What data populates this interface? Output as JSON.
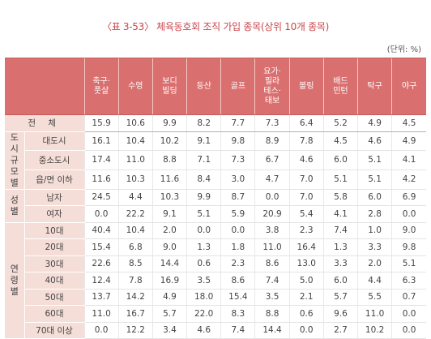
{
  "title": "〈표 3-53〉 체육동호회 조직 가입 종목(상위 10개 종목)",
  "unit": "(단위: %)",
  "columns": [
    "축구·\n풋살",
    "수영",
    "보디\n빌딩",
    "등산",
    "골프",
    "요가·\n필라\n테스·\n태보",
    "볼링",
    "배드\n민턴",
    "탁구",
    "야구"
  ],
  "total": {
    "label": "전 체",
    "values": [
      "15.9",
      "10.6",
      "9.9",
      "8.2",
      "7.7",
      "7.3",
      "6.4",
      "5.2",
      "4.9",
      "4.5"
    ]
  },
  "groups": [
    {
      "label": "도\n시\n규\n모\n별",
      "rows": [
        {
          "label": "대도시",
          "values": [
            "16.1",
            "10.4",
            "10.2",
            "9.1",
            "9.8",
            "8.9",
            "7.8",
            "4.5",
            "4.6",
            "4.9"
          ]
        },
        {
          "label": "중소도시",
          "values": [
            "17.4",
            "11.0",
            "8.8",
            "7.1",
            "7.3",
            "6.7",
            "4.6",
            "6.0",
            "5.1",
            "4.1"
          ]
        },
        {
          "label": "읍/면 이하",
          "values": [
            "11.6",
            "10.3",
            "11.6",
            "8.4",
            "3.0",
            "4.7",
            "7.0",
            "5.1",
            "5.1",
            "4.2"
          ]
        }
      ]
    },
    {
      "label": "성\n별",
      "rows": [
        {
          "label": "남자",
          "values": [
            "24.5",
            "4.4",
            "10.3",
            "9.9",
            "8.7",
            "0.0",
            "7.0",
            "5.8",
            "6.0",
            "6.9"
          ]
        },
        {
          "label": "여자",
          "values": [
            "0.0",
            "22.2",
            "9.1",
            "5.1",
            "5.9",
            "20.9",
            "5.4",
            "4.1",
            "2.8",
            "0.0"
          ]
        }
      ]
    },
    {
      "label": "연\n령\n별",
      "rows": [
        {
          "label": "10대",
          "values": [
            "40.4",
            "10.4",
            "2.0",
            "0.0",
            "0.0",
            "3.8",
            "2.3",
            "7.4",
            "1.0",
            "9.0"
          ]
        },
        {
          "label": "20대",
          "values": [
            "15.4",
            "6.8",
            "9.0",
            "1.3",
            "1.8",
            "11.0",
            "16.4",
            "1.3",
            "3.3",
            "9.8"
          ]
        },
        {
          "label": "30대",
          "values": [
            "22.6",
            "8.5",
            "14.4",
            "0.6",
            "2.3",
            "8.6",
            "13.0",
            "3.3",
            "2.0",
            "5.1"
          ]
        },
        {
          "label": "40대",
          "values": [
            "12.4",
            "7.8",
            "16.9",
            "3.5",
            "8.6",
            "7.4",
            "5.0",
            "6.0",
            "4.4",
            "6.3"
          ]
        },
        {
          "label": "50대",
          "values": [
            "13.7",
            "14.2",
            "4.9",
            "18.0",
            "15.4",
            "3.5",
            "2.1",
            "5.7",
            "5.5",
            "0.7"
          ]
        },
        {
          "label": "60대",
          "values": [
            "11.0",
            "16.7",
            "5.7",
            "22.0",
            "8.3",
            "8.8",
            "0.6",
            "9.6",
            "11.0",
            "0.0"
          ]
        },
        {
          "label": "70대 이상",
          "values": [
            "0.0",
            "12.2",
            "3.4",
            "4.6",
            "7.4",
            "14.4",
            "0.0",
            "2.7",
            "10.2",
            "0.0"
          ]
        }
      ]
    }
  ]
}
